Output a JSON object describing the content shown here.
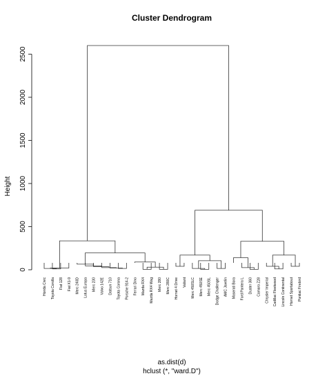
{
  "chart_data": {
    "type": "dendrogram",
    "title": "Cluster Dendrogram",
    "ylabel": "Height",
    "xlabel": "as.dist(d)",
    "sublabel": "hclust (*, \"ward.D\")",
    "ylim": [
      0,
      2600
    ],
    "yticks": [
      0,
      500,
      1000,
      1500,
      2000,
      2500
    ],
    "leaves": [
      "Honda Civic",
      "Toyota Corolla",
      "Fiat 128",
      "Fiat X1-9",
      "Merc 240D",
      "Lotus Europa",
      "Merc 230",
      "Volvo 142E",
      "Datsun 710",
      "Toyota Corona",
      "Porsche 914-2",
      "Ferrari Dino",
      "Mazda RX4",
      "Mazda RX4 Wag",
      "Merc 280",
      "Merc 280C",
      "Hornet 4 Drive",
      "Valiant",
      "Merc 450SLC",
      "Merc 450SE",
      "Merc 450SL",
      "Dodge Challenger",
      "AMC Javelin",
      "Maserati Bora",
      "Ford Pantera L",
      "Duster 360",
      "Camaro Z28",
      "Chrysler Imperial",
      "Cadillac Fleetwood",
      "Lincoln Continental",
      "Hornet Sportabout",
      "Pontiac Firebird"
    ],
    "merges": [
      [
        -2,
        -3,
        10
      ],
      [
        -1,
        1,
        15
      ],
      [
        -4,
        2,
        20
      ],
      [
        -10,
        -11,
        15
      ],
      [
        -9,
        4,
        20
      ],
      [
        -8,
        5,
        25
      ],
      [
        -7,
        6,
        35
      ],
      [
        -6,
        7,
        45
      ],
      [
        -5,
        8,
        65
      ],
      [
        -13,
        -14,
        5
      ],
      [
        -15,
        -16,
        5
      ],
      [
        10,
        11,
        30
      ],
      [
        -12,
        12,
        90
      ],
      [
        9,
        13,
        195
      ],
      [
        3,
        14,
        335
      ],
      [
        -17,
        -18,
        40
      ],
      [
        -20,
        -21,
        5
      ],
      [
        -19,
        17,
        15
      ],
      [
        -22,
        -23,
        15
      ],
      [
        18,
        19,
        105
      ],
      [
        16,
        20,
        170
      ],
      [
        -26,
        -27,
        5
      ],
      [
        -25,
        22,
        25
      ],
      [
        -24,
        23,
        140
      ],
      [
        -29,
        -30,
        10
      ],
      [
        -28,
        25,
        40
      ],
      [
        -31,
        -32,
        40
      ],
      [
        26,
        27,
        170
      ],
      [
        24,
        28,
        330
      ],
      [
        21,
        29,
        690
      ],
      [
        15,
        30,
        2600
      ]
    ]
  }
}
